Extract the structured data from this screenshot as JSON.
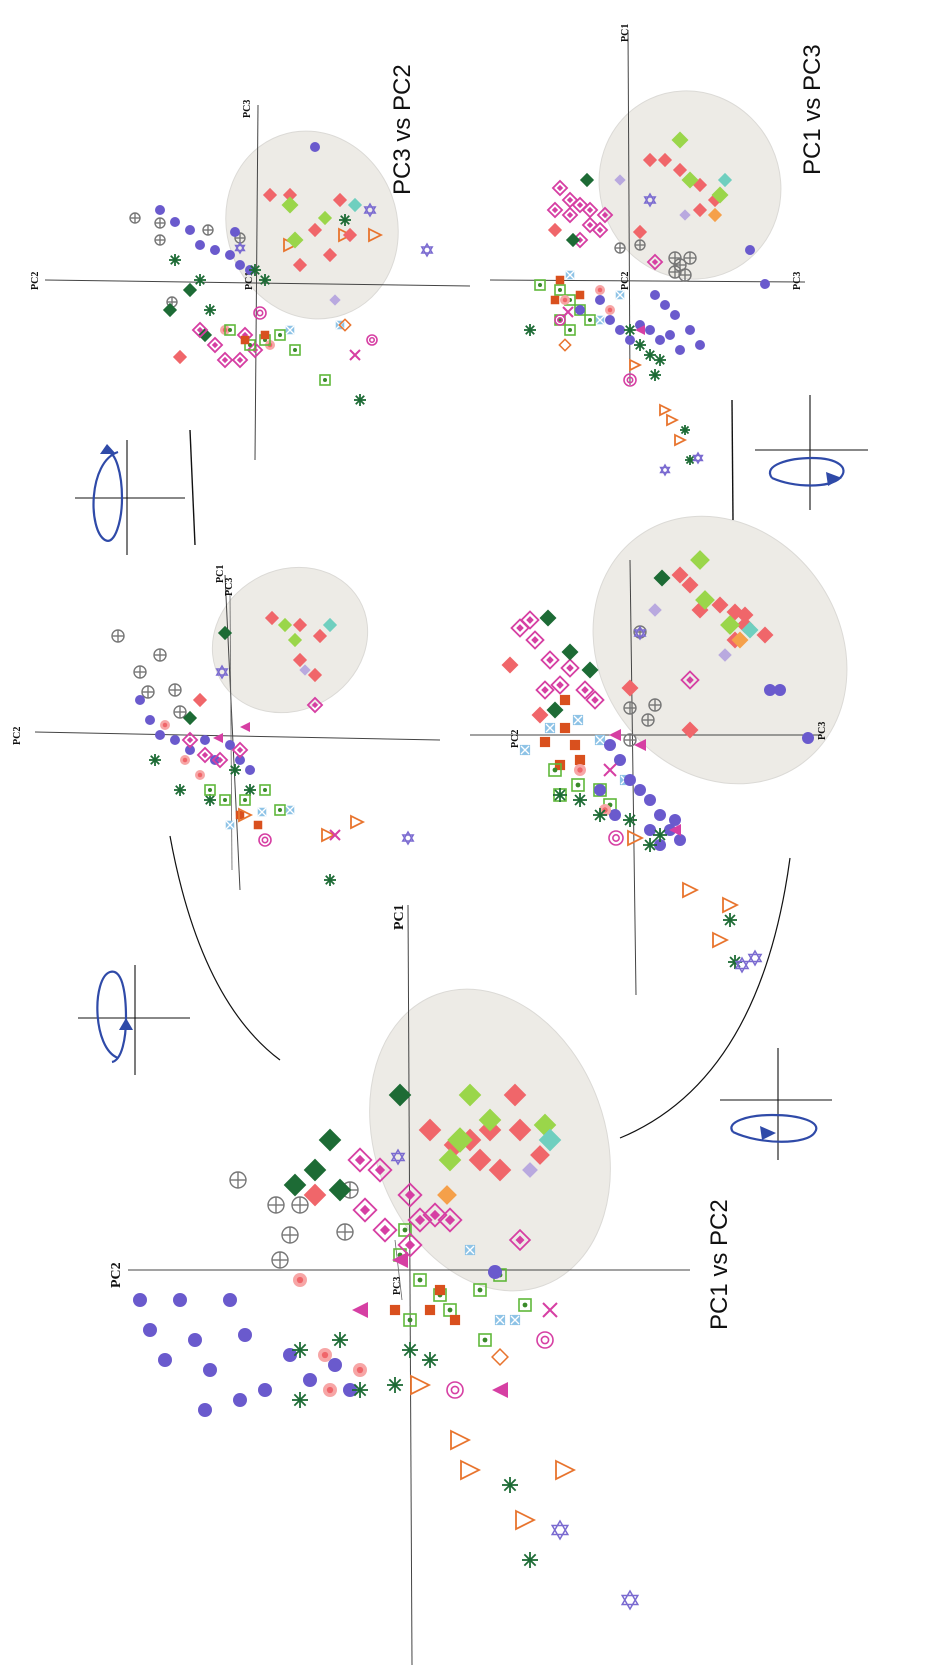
{
  "chart_data": [
    {
      "type": "scatter",
      "title": "PC1 vs PC2",
      "axes": [
        "PC1",
        "PC2",
        "PC3"
      ],
      "grid": false,
      "ellipse": true,
      "rotation_icon": "rotate-arrow-icon"
    },
    {
      "type": "scatter",
      "title": "",
      "axes": [
        "PC1",
        "PC2",
        "PC3"
      ],
      "grid": false,
      "ellipse": true
    },
    {
      "type": "scatter",
      "title": "PC3 vs PC2",
      "axes": [
        "PC1",
        "PC2",
        "PC3"
      ],
      "grid": false,
      "ellipse": true,
      "rotation_icon": "rotate-arrow-icon"
    },
    {
      "type": "scatter",
      "title": "",
      "axes": [
        "PC1",
        "PC2",
        "PC3"
      ],
      "grid": false,
      "ellipse": true
    },
    {
      "type": "scatter",
      "title": "PC1 vs PC3",
      "axes": [
        "PC1",
        "PC2",
        "PC3"
      ],
      "grid": false,
      "ellipse": true,
      "rotation_icon": "rotate-arrow-icon"
    }
  ],
  "colors": {
    "purple": "#6a5acd",
    "salmon": "#f0666a",
    "lightgreen": "#9ad64a",
    "darkgreen": "#1d6b35",
    "magenta": "#d63fa3",
    "orange": "#e8742e",
    "orangered": "#d9501e",
    "grey": "#777777",
    "lightblue": "#8ec3e6",
    "teal": "#6fcfbf",
    "lavender": "#b9a9df",
    "arrow": "#2f4aa8"
  }
}
